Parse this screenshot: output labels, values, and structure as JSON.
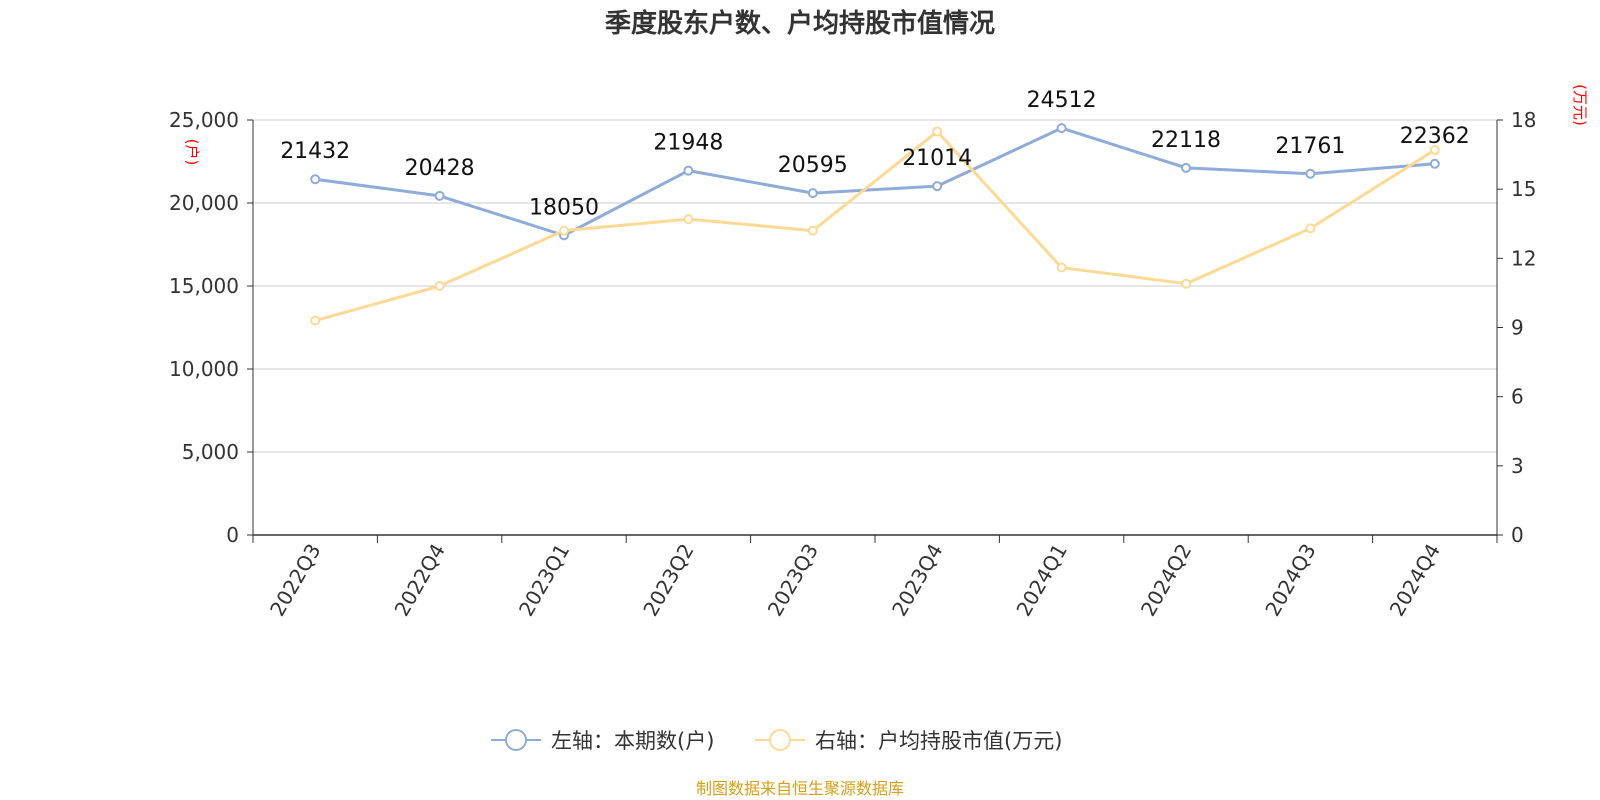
{
  "chart_data": {
    "type": "line",
    "title": "季度股东户数、户均持股市值情况",
    "categories": [
      "2022Q3",
      "2022Q4",
      "2023Q1",
      "2023Q2",
      "2023Q3",
      "2023Q4",
      "2024Q1",
      "2024Q2",
      "2024Q3",
      "2024Q4"
    ],
    "left_axis": {
      "unit": "(户)",
      "range": [
        0,
        25000
      ],
      "ticks": [
        "0",
        "5,000",
        "10,000",
        "15,000",
        "20,000",
        "25,000"
      ]
    },
    "right_axis": {
      "unit": "(万元)",
      "range": [
        0,
        18
      ],
      "ticks": [
        "0",
        "3",
        "6",
        "9",
        "12",
        "15",
        "18"
      ]
    },
    "series": [
      {
        "name": "左轴：本期数(户)",
        "axis": "left",
        "color": "#8eabd9",
        "values": [
          21432,
          20428,
          18050,
          21948,
          20595,
          21014,
          24512,
          22118,
          21761,
          22362
        ],
        "labels": [
          "21432",
          "20428",
          "18050",
          "21948",
          "20595",
          "21014",
          "24512",
          "22118",
          "21761",
          "22362"
        ]
      },
      {
        "name": "右轴：户均持股市值(万元)",
        "axis": "right",
        "color": "#fcd994",
        "values": [
          9.3,
          10.8,
          13.2,
          13.7,
          13.2,
          17.5,
          11.6,
          10.9,
          13.3,
          16.7
        ]
      }
    ],
    "grid": true,
    "legend": "bottom-center"
  },
  "source": {
    "text": "制图数据来自恒生聚源数据库",
    "color": "#d4a017"
  },
  "colors": {
    "axis": "#333333",
    "grid": "#cccccc",
    "unit": "#ff0000"
  }
}
